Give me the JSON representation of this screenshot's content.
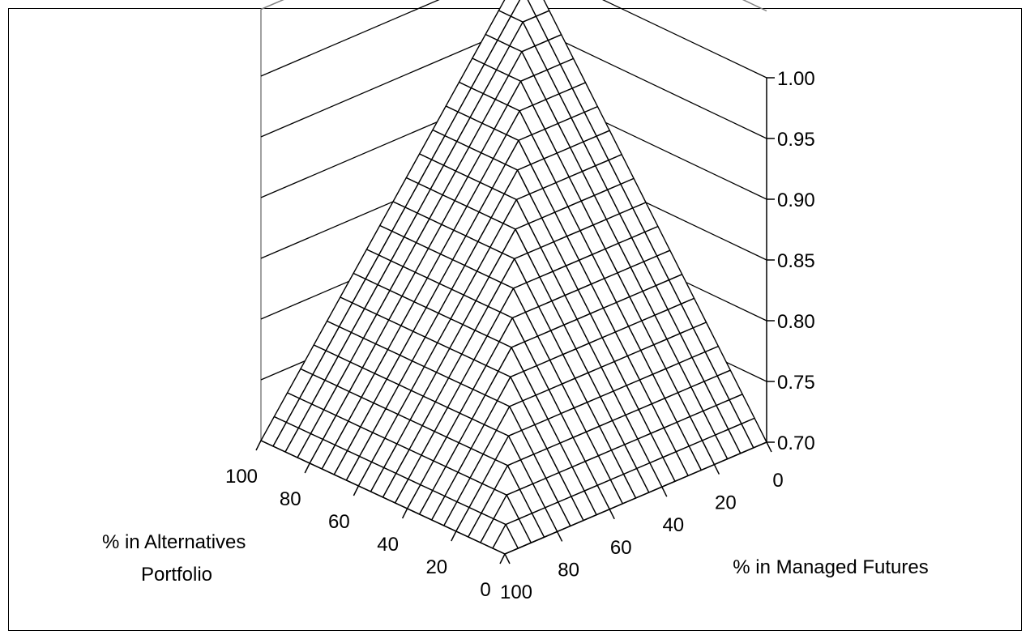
{
  "chart_data": {
    "type": "surface",
    "x_axis": {
      "title_lines": [
        "% in Managed Futures"
      ],
      "ticks": [
        "0",
        "20",
        "40",
        "60",
        "80",
        "100"
      ],
      "range": [
        0,
        100
      ]
    },
    "y_axis": {
      "title_lines": [
        "% in Alternatives",
        "Portfolio"
      ],
      "ticks": [
        "100",
        "80",
        "60",
        "40",
        "20",
        "0"
      ],
      "range": [
        0,
        100
      ]
    },
    "z_axis": {
      "ticks": [
        "0.70",
        "0.75",
        "0.80",
        "0.85",
        "0.90",
        "0.95",
        "1.00"
      ],
      "range": [
        0.7,
        1.0
      ]
    },
    "grid_step": 5,
    "peak_value": 1.0,
    "peak_at": {
      "managed_futures": 0,
      "alternatives": 0
    },
    "surface_formula": "z = 1 - 0.003 * max(managed_futures, alternatives)",
    "grid": true,
    "legend": "none",
    "colors": {
      "line": "#000000",
      "grid": "#808080",
      "background": "#ffffff"
    }
  }
}
